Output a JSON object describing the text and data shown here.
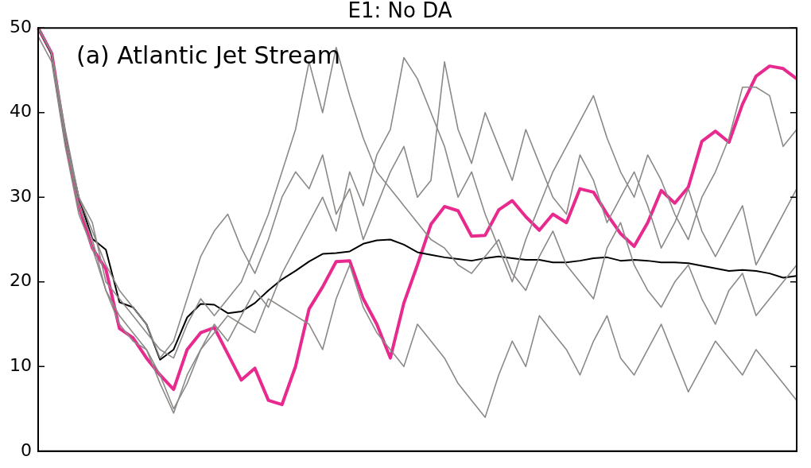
{
  "chart_data": {
    "type": "line",
    "title": "E1: No DA",
    "annotations": [
      "(a) Atlantic Jet Stream"
    ],
    "categories": [
      null,
      null,
      null,
      null,
      null,
      null,
      null,
      null,
      null,
      null,
      null,
      null,
      null,
      null,
      null,
      null,
      null,
      null,
      null,
      null,
      null,
      null,
      null,
      null,
      null,
      null,
      null,
      null,
      null,
      null,
      null,
      null,
      null,
      null,
      null,
      null,
      null,
      null,
      null,
      null,
      null,
      null,
      null,
      null,
      null,
      null,
      null,
      null,
      null,
      null,
      null,
      null,
      null,
      null,
      null,
      null,
      null
    ],
    "ylim": [
      0,
      50
    ],
    "yticks": [
      0,
      10,
      20,
      30,
      40,
      50
    ],
    "grid": false,
    "legend": false,
    "tick_labels": "y",
    "marker": "none",
    "series": [
      {
        "color": "#8c8987",
        "values": [
          50,
          47,
          38,
          30,
          27,
          20,
          18,
          16,
          14,
          12,
          11,
          15,
          18,
          16,
          18,
          20,
          24,
          28,
          33,
          38,
          46,
          40,
          47.7,
          42,
          37,
          33,
          31,
          29,
          27,
          25,
          24,
          22,
          21,
          23,
          25,
          21,
          19,
          23,
          26,
          22,
          20,
          18,
          24,
          27,
          22,
          19,
          17,
          20,
          22,
          18,
          15,
          19,
          21,
          16,
          18,
          20,
          22
        ]
      },
      {
        "color": "#8c8987",
        "values": [
          49,
          46,
          36,
          28,
          24,
          19,
          15,
          13,
          12,
          9,
          5,
          8,
          12,
          15,
          13,
          16,
          19,
          17,
          21,
          24,
          27,
          30,
          26,
          33,
          29,
          35,
          38,
          46.5,
          44,
          40,
          36,
          30,
          33,
          28,
          24,
          20,
          25,
          29,
          33,
          36,
          39,
          42,
          37,
          33,
          30,
          35,
          32,
          28,
          25,
          30,
          33,
          37,
          43,
          43,
          42,
          36,
          38
        ]
      },
      {
        "color": "#8c8987",
        "values": [
          50,
          47,
          37,
          29,
          25,
          19,
          16,
          14,
          12,
          8,
          4.5,
          9,
          12,
          14,
          16,
          15,
          14,
          18,
          17,
          16,
          15,
          12,
          18,
          22,
          17,
          14,
          12,
          10,
          15,
          13,
          11,
          8,
          6,
          4,
          9,
          13,
          10,
          16,
          14,
          12,
          9,
          13,
          16,
          11,
          9,
          12,
          15,
          11,
          7,
          10,
          13,
          11,
          9,
          12,
          10,
          8,
          6
        ]
      },
      {
        "color": "#8c8987",
        "values": [
          50,
          47,
          37,
          30,
          26,
          22,
          19,
          17,
          15,
          11,
          13,
          18,
          23,
          26,
          28,
          24,
          21,
          25,
          30,
          33,
          31,
          35,
          28,
          31,
          25,
          29,
          33,
          36,
          30,
          32,
          46,
          38,
          34,
          40,
          36,
          32,
          38,
          34,
          30,
          28,
          35,
          32,
          27,
          30,
          33,
          29,
          24,
          27,
          31,
          26,
          23,
          26,
          29,
          22,
          25,
          28,
          31
        ]
      },
      {
        "color": "#000000",
        "values": [
          50,
          46.9,
          37,
          30,
          25.1,
          23.8,
          17.6,
          17,
          15,
          10.8,
          12,
          15.8,
          17.4,
          17.3,
          16.3,
          16.5,
          17.5,
          19,
          20.3,
          21.3,
          22.4,
          23.3,
          23.4,
          23.6,
          24.5,
          24.9,
          25,
          24.4,
          23.5,
          23.2,
          22.9,
          22.7,
          22.5,
          22.8,
          23,
          22.8,
          22.6,
          22.6,
          22.3,
          22.3,
          22.5,
          22.8,
          22.9,
          22.5,
          22.6,
          22.5,
          22.3,
          22.3,
          22.2,
          21.9,
          21.6,
          21.3,
          21.4,
          21.3,
          21,
          20.5,
          20.7
        ]
      },
      {
        "color": "#e8298e",
        "values": [
          50,
          47,
          37,
          29,
          24,
          21.5,
          14.5,
          13.4,
          11,
          9,
          7.3,
          12,
          14,
          14.6,
          11.5,
          8.4,
          9.8,
          6,
          5.5,
          10,
          16.8,
          19.4,
          22.4,
          22.5,
          18,
          15,
          11,
          17.5,
          22,
          26.8,
          28.9,
          28.4,
          25.4,
          25.5,
          28.5,
          29.6,
          27.7,
          26.1,
          28,
          27,
          31,
          30.6,
          28,
          25.7,
          24.2,
          27,
          30.8,
          29.3,
          31.2,
          36.6,
          37.8,
          36.5,
          41,
          44.3,
          45.5,
          45.2,
          44
        ]
      }
    ]
  }
}
